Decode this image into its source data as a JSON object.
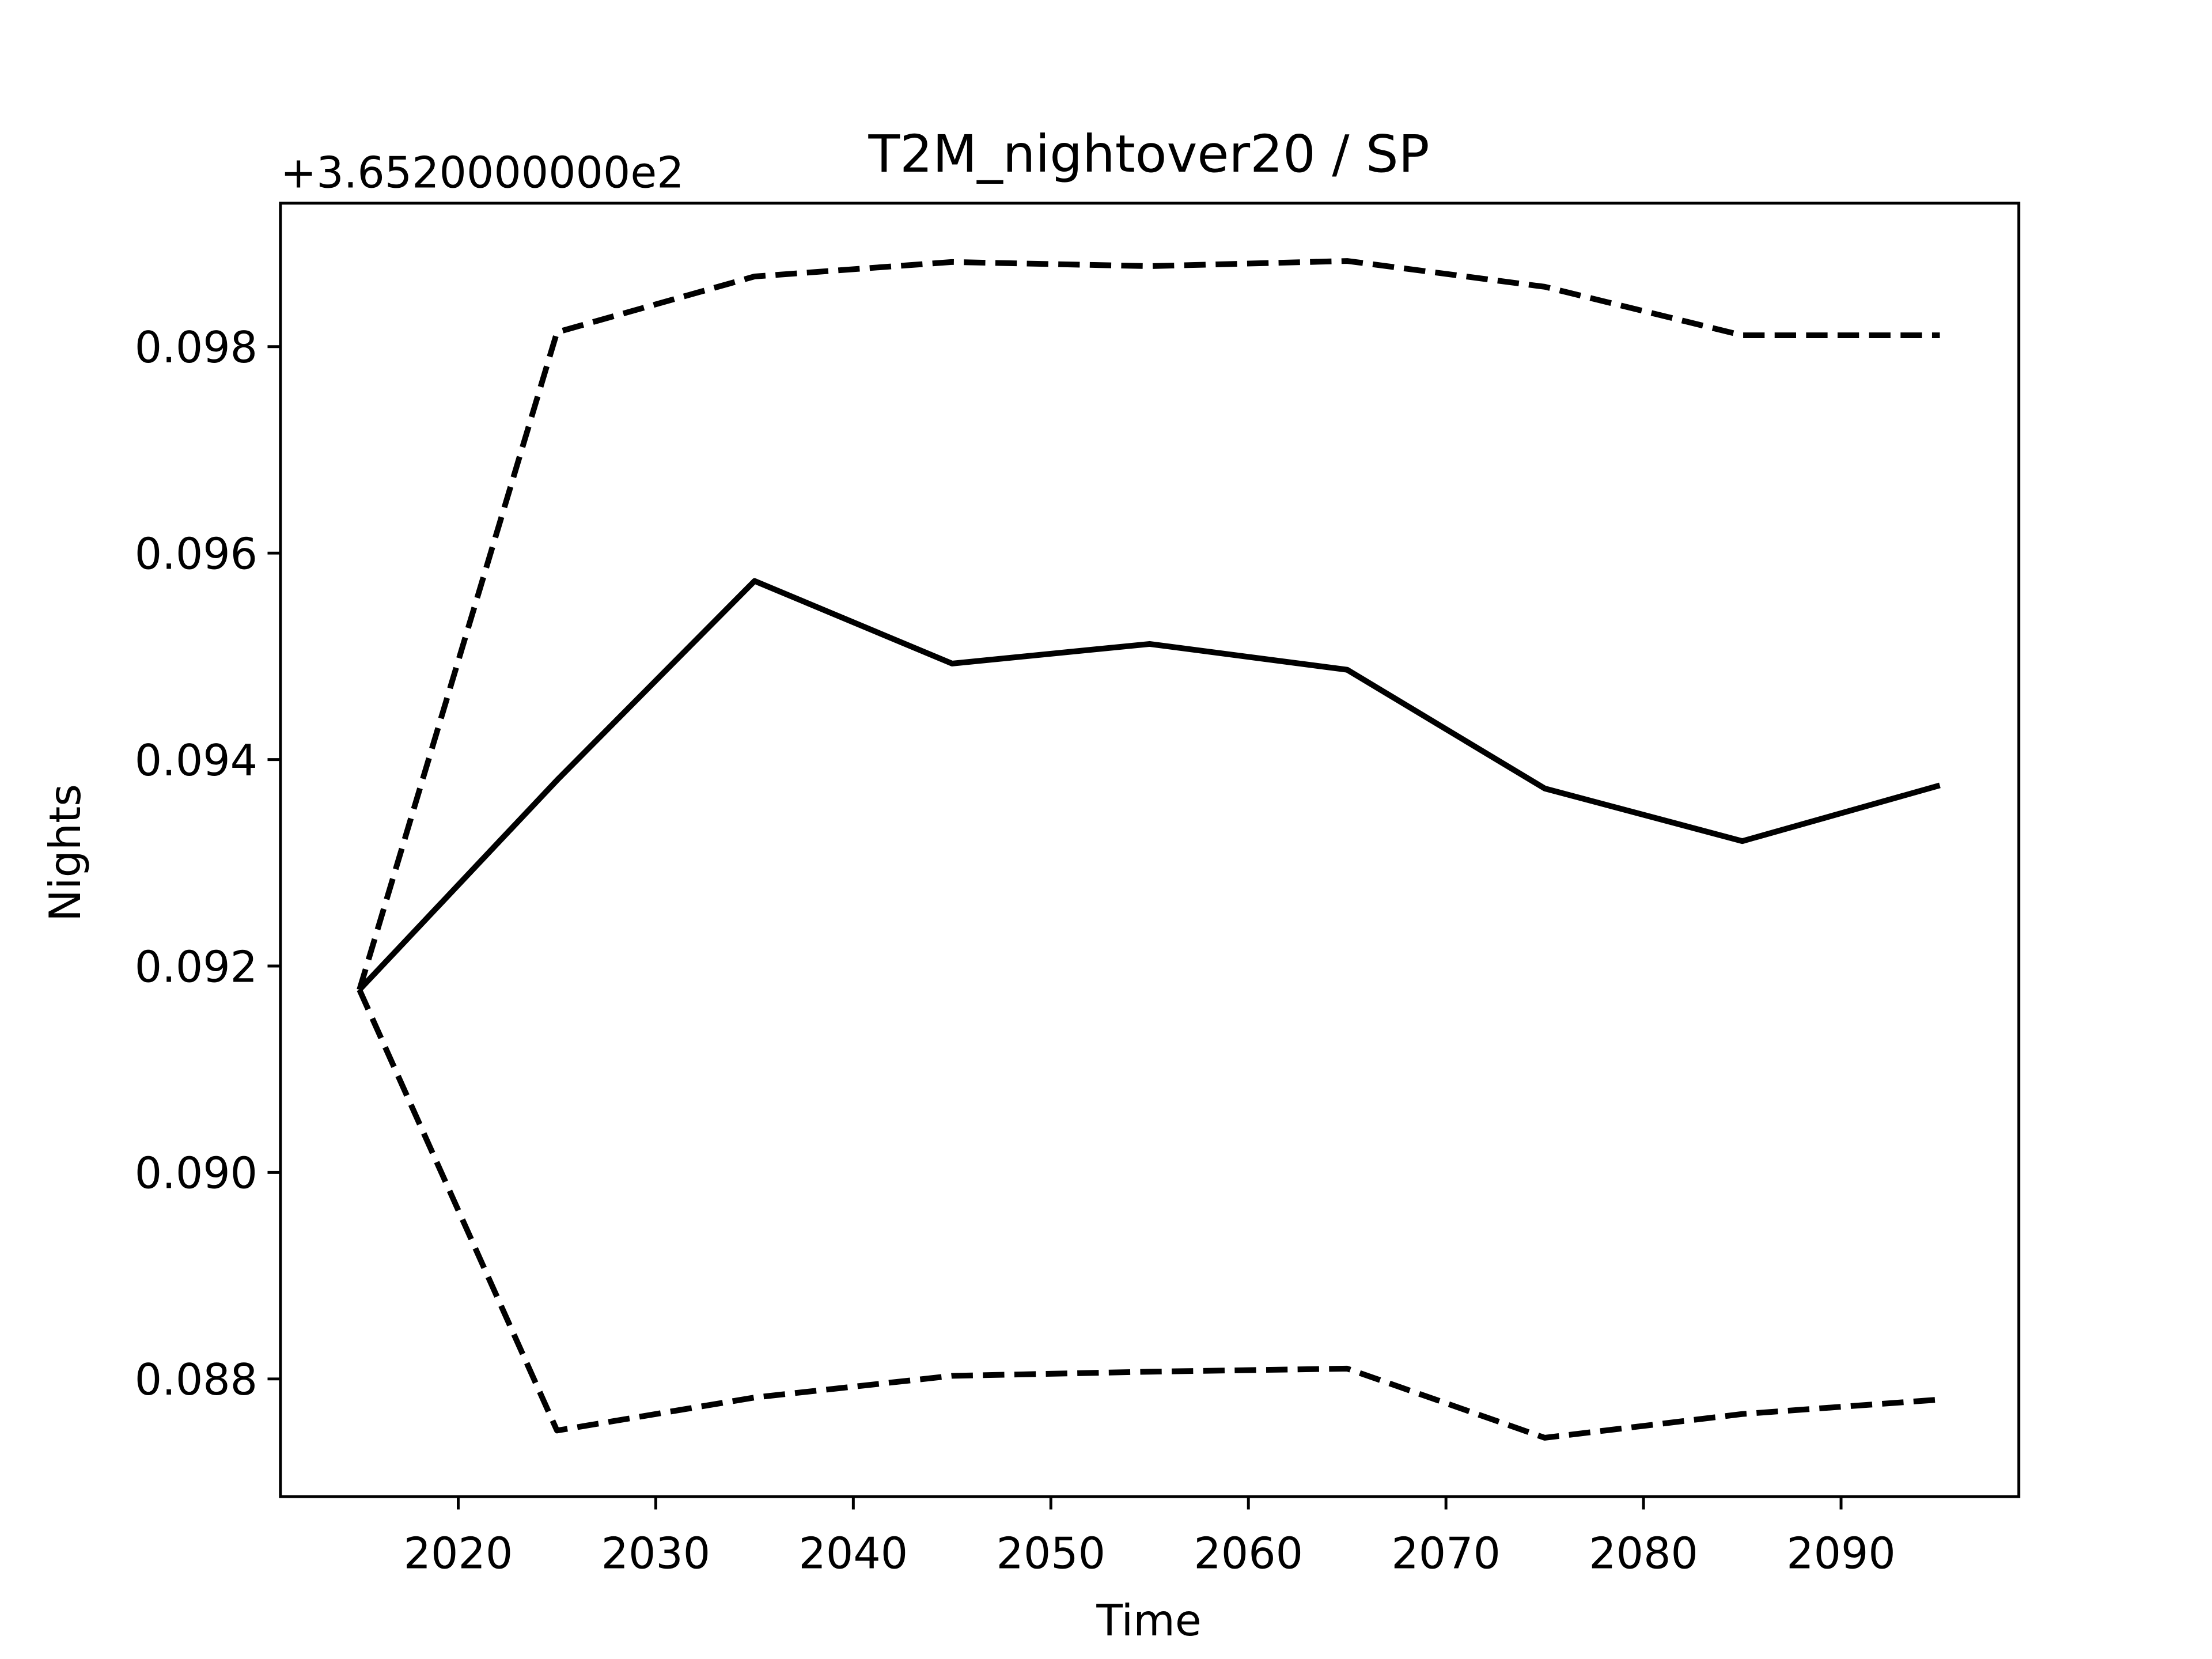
{
  "chart_data": {
    "type": "line",
    "title": "T2M_nightover20 / SP",
    "xlabel": "Time",
    "ylabel": "Nights",
    "offset_label": "+3.6520000000e2",
    "x": [
      2015,
      2025,
      2035,
      2045,
      2055,
      2065,
      2075,
      2085,
      2095
    ],
    "series": [
      {
        "color": "#000000",
        "dashed": false,
        "values": [
          0.09177,
          0.0938,
          0.09573,
          0.09493,
          0.09512,
          0.09487,
          0.09372,
          0.09321,
          0.09375
        ]
      },
      {
        "color": "#000000",
        "dashed": true,
        "values": [
          0.09177,
          0.09814,
          0.09868,
          0.09882,
          0.09878,
          0.09883,
          0.09858,
          0.09811,
          0.09811
        ]
      },
      {
        "color": "#000000",
        "dashed": true,
        "values": [
          0.09177,
          0.0875,
          0.08782,
          0.08803,
          0.08807,
          0.0881,
          0.08743,
          0.08766,
          0.0878
        ]
      }
    ],
    "xlim": [
      2011,
      2099
    ],
    "xticks": [
      2020,
      2030,
      2040,
      2050,
      2060,
      2070,
      2080,
      2090
    ],
    "ylim": [
      0.08686,
      0.09939
    ],
    "yticks": [
      0.088,
      {
        "value": 0.09,
        "label": "0.090"
      },
      0.092,
      0.094,
      0.096,
      0.098
    ],
    "grid": false
  }
}
